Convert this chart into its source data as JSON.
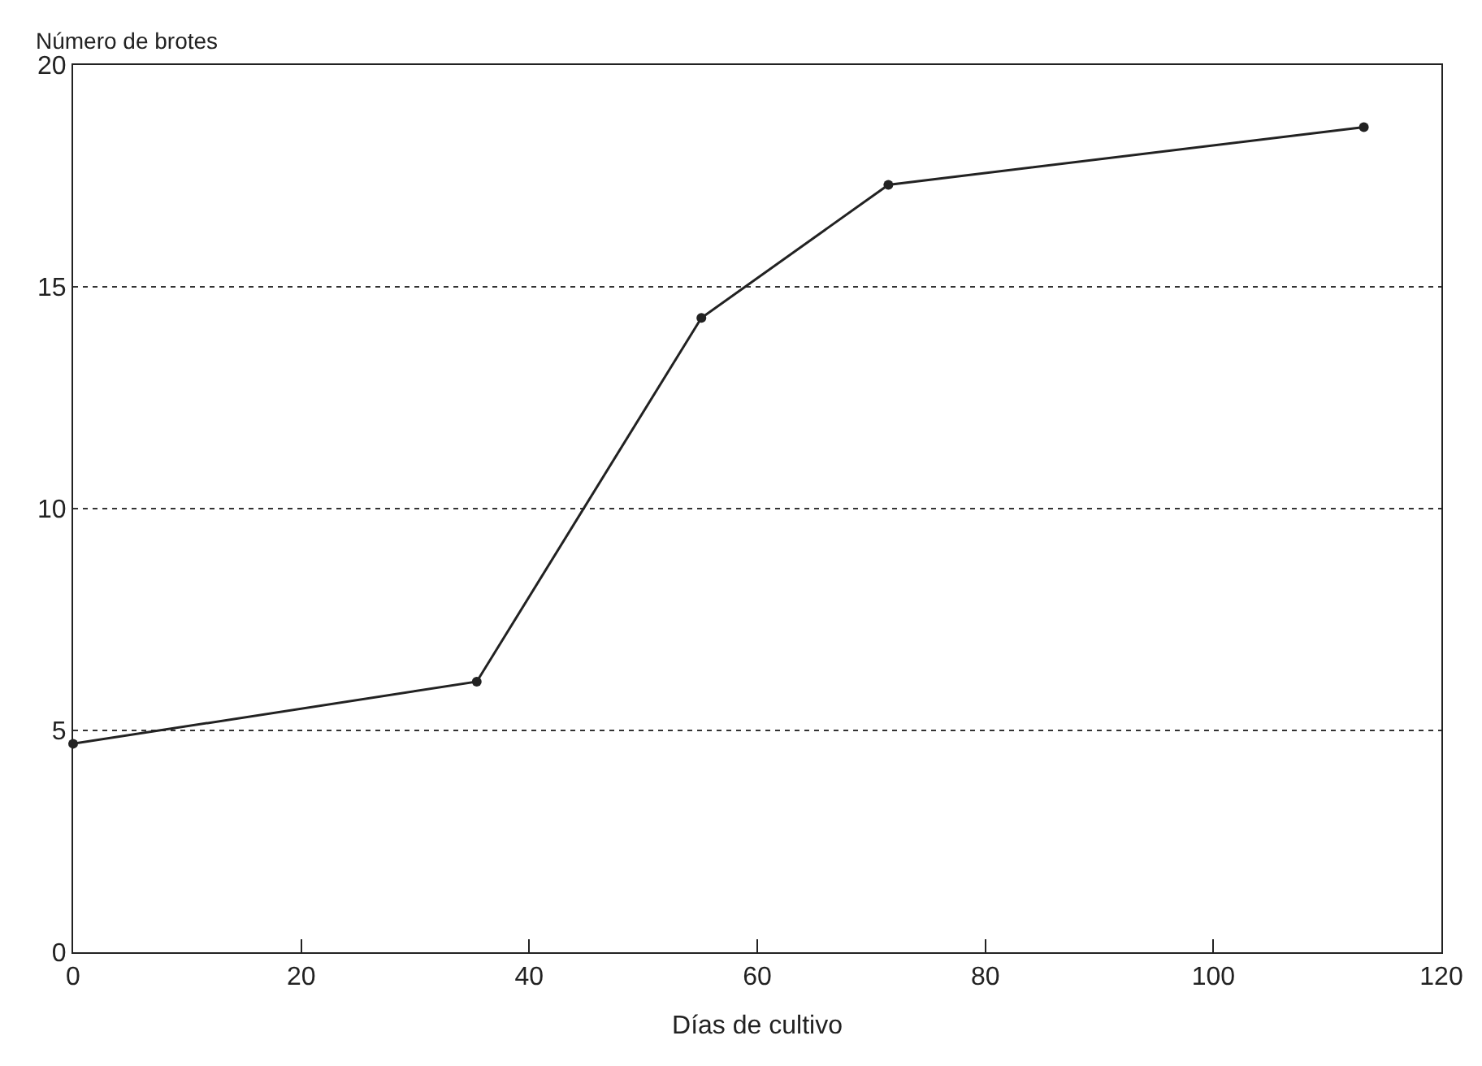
{
  "chart_data": {
    "type": "line",
    "xlabel": "Días de cultivo",
    "ylabel": "Número de brotes",
    "x": [
      0,
      35.4,
      55.1,
      71.5,
      113.2
    ],
    "series": [
      {
        "color": "#222222",
        "values": [
          4.7,
          6.1,
          14.3,
          17.3,
          18.6
        ]
      }
    ],
    "xlim": [
      0,
      120
    ],
    "xticks": [
      0,
      20,
      40,
      60,
      80,
      100,
      120
    ],
    "ylim": [
      0,
      20
    ],
    "yticks": [
      0,
      5,
      10,
      15,
      20
    ],
    "grid": "y",
    "marker": "circle",
    "line_style": "solid",
    "legend": false
  }
}
